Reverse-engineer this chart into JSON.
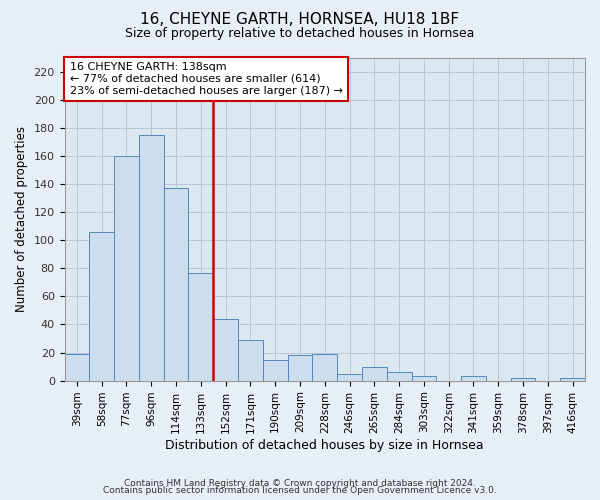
{
  "title": "16, CHEYNE GARTH, HORNSEA, HU18 1BF",
  "subtitle": "Size of property relative to detached houses in Hornsea",
  "xlabel": "Distribution of detached houses by size in Hornsea",
  "ylabel": "Number of detached properties",
  "categories": [
    "39sqm",
    "58sqm",
    "77sqm",
    "96sqm",
    "114sqm",
    "133sqm",
    "152sqm",
    "171sqm",
    "190sqm",
    "209sqm",
    "228sqm",
    "246sqm",
    "265sqm",
    "284sqm",
    "303sqm",
    "322sqm",
    "341sqm",
    "359sqm",
    "378sqm",
    "397sqm",
    "416sqm"
  ],
  "values": [
    19,
    106,
    160,
    175,
    137,
    77,
    44,
    29,
    15,
    18,
    19,
    5,
    10,
    6,
    3,
    0,
    3,
    0,
    2,
    0,
    2
  ],
  "bar_color": "#ccdded",
  "bar_edge_color": "#5588bb",
  "annotation_line1": "16 CHEYNE GARTH: 138sqm",
  "annotation_line2": "← 77% of detached houses are smaller (614)",
  "annotation_line3": "23% of semi-detached houses are larger (187) →",
  "annotation_box_color": "#ffffff",
  "annotation_box_edge": "#cc0000",
  "vline_color": "#cc0000",
  "ylim": [
    0,
    230
  ],
  "yticks": [
    0,
    20,
    40,
    60,
    80,
    100,
    120,
    140,
    160,
    180,
    200,
    220
  ],
  "footer1": "Contains HM Land Registry data © Crown copyright and database right 2024.",
  "footer2": "Contains public sector information licensed under the Open Government Licence v3.0.",
  "bg_color": "#e8eef5",
  "plot_bg_color": "#dce8f0",
  "grid_color": "#b8c8d8"
}
